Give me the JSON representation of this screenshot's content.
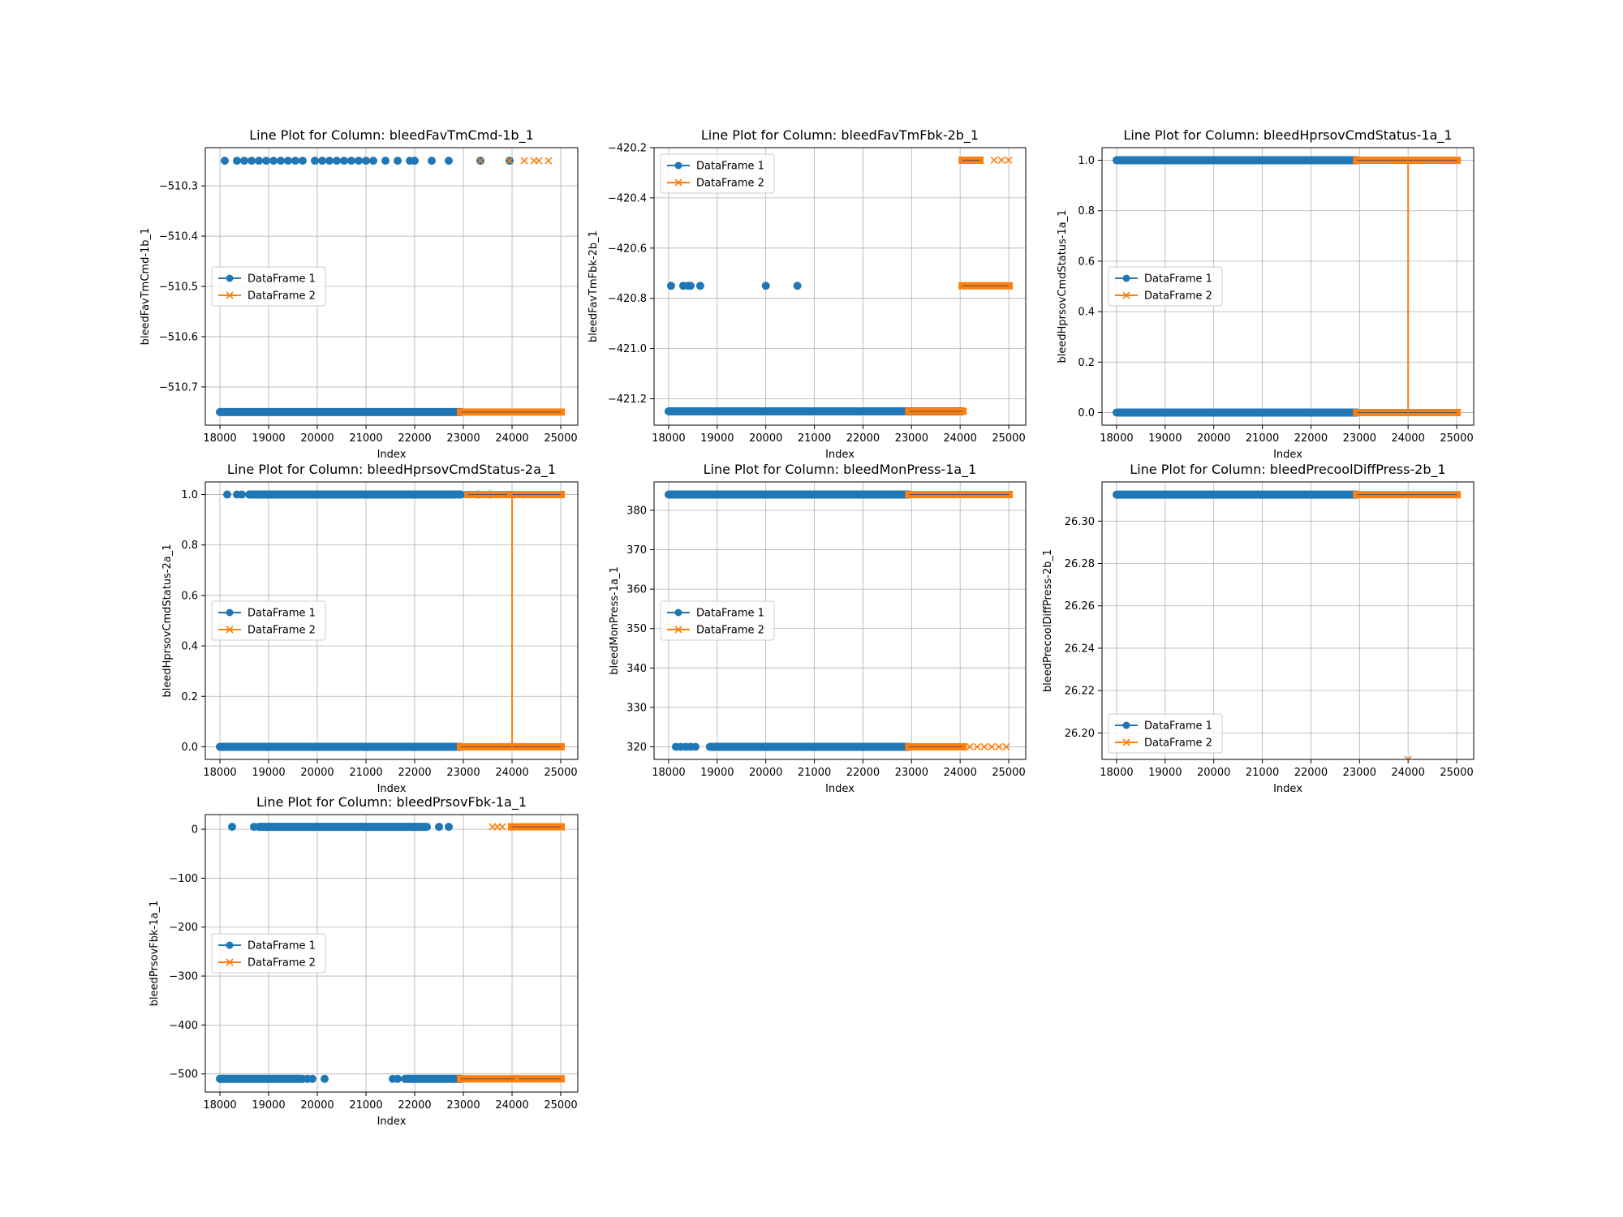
{
  "figure": {
    "colors": {
      "df1": "#1f77b4",
      "df2": "#ff7f0e",
      "grid": "#b0b0b0",
      "axes": "#000000"
    }
  },
  "chart_data": [
    {
      "type": "scatter",
      "title": "Line Plot for Column: bleedFavTmCmd-1b_1",
      "xlabel": "Index",
      "ylabel": "bleedFavTmCmd-1b_1",
      "xlim": [
        17700,
        25350
      ],
      "ylim": [
        -510.776,
        -510.224
      ],
      "xticks": [
        18000,
        19000,
        20000,
        21000,
        22000,
        23000,
        24000,
        25000
      ],
      "xtick_labels": [
        "18000",
        "19000",
        "20000",
        "21000",
        "22000",
        "23000",
        "24000",
        "25000"
      ],
      "yticks": [
        -510.3,
        -510.4,
        -510.5,
        -510.6,
        -510.7
      ],
      "ytick_labels": [
        "−510.3",
        "−510.4",
        "−510.5",
        "−510.6",
        "−510.7"
      ],
      "grid": true,
      "legend": {
        "position": "center-left",
        "entries": [
          "DataFrame 1",
          "DataFrame 2"
        ]
      },
      "series": [
        {
          "name": "DataFrame 1",
          "marker": "circle",
          "segments": [
            {
              "x": [
                18000,
                22950
              ],
              "y": -510.75
            }
          ],
          "points": [
            [
              18100,
              -510.25
            ],
            [
              18350,
              -510.25
            ],
            [
              18500,
              -510.25
            ],
            [
              18650,
              -510.25
            ],
            [
              18800,
              -510.25
            ],
            [
              18950,
              -510.25
            ],
            [
              19100,
              -510.25
            ],
            [
              19250,
              -510.25
            ],
            [
              19400,
              -510.25
            ],
            [
              19550,
              -510.25
            ],
            [
              19700,
              -510.25
            ],
            [
              19950,
              -510.25
            ],
            [
              20100,
              -510.25
            ],
            [
              20250,
              -510.25
            ],
            [
              20400,
              -510.25
            ],
            [
              20550,
              -510.25
            ],
            [
              20700,
              -510.25
            ],
            [
              20850,
              -510.25
            ],
            [
              21000,
              -510.25
            ],
            [
              21150,
              -510.25
            ],
            [
              21400,
              -510.25
            ],
            [
              21650,
              -510.25
            ],
            [
              21900,
              -510.25
            ],
            [
              22000,
              -510.25
            ],
            [
              22350,
              -510.25
            ],
            [
              22700,
              -510.25
            ],
            [
              23350,
              -510.25
            ],
            [
              23950,
              -510.25
            ]
          ]
        },
        {
          "name": "DataFrame 2",
          "marker": "x",
          "segments": [
            {
              "x": [
                22950,
                25000
              ],
              "y": -510.75
            }
          ],
          "points": [
            [
              23350,
              -510.25
            ],
            [
              23950,
              -510.25
            ],
            [
              24250,
              -510.25
            ],
            [
              24450,
              -510.25
            ],
            [
              24550,
              -510.25
            ],
            [
              24750,
              -510.25
            ]
          ]
        }
      ]
    },
    {
      "type": "scatter",
      "title": "Line Plot for Column: bleedFavTmFbk-2b_1",
      "xlabel": "Index",
      "ylabel": "bleedFavTmFbk-2b_1",
      "xlim": [
        17700,
        25350
      ],
      "ylim": [
        -421.305,
        -420.2
      ],
      "xticks": [
        18000,
        19000,
        20000,
        21000,
        22000,
        23000,
        24000,
        25000
      ],
      "xtick_labels": [
        "18000",
        "19000",
        "20000",
        "21000",
        "22000",
        "23000",
        "24000",
        "25000"
      ],
      "yticks": [
        -420.2,
        -420.4,
        -420.6,
        -420.8,
        -421.0,
        -421.2
      ],
      "ytick_labels": [
        "−420.2",
        "−420.4",
        "−420.6",
        "−420.8",
        "−421.0",
        "−421.2"
      ],
      "grid": true,
      "legend": {
        "position": "top-left",
        "entries": [
          "DataFrame 1",
          "DataFrame 2"
        ]
      },
      "series": [
        {
          "name": "DataFrame 1",
          "marker": "circle",
          "segments": [
            {
              "x": [
                18000,
                24050
              ],
              "y": -421.25
            }
          ],
          "points": [
            [
              18050,
              -420.75
            ],
            [
              18300,
              -420.75
            ],
            [
              18400,
              -420.75
            ],
            [
              18450,
              -420.75
            ],
            [
              18650,
              -420.75
            ],
            [
              20000,
              -420.75
            ],
            [
              20650,
              -420.75
            ]
          ]
        },
        {
          "name": "DataFrame 2",
          "marker": "x",
          "segments": [
            {
              "x": [
                22950,
                24050
              ],
              "y": -421.25
            },
            {
              "x": [
                24050,
                25000
              ],
              "y": -420.75
            },
            {
              "x": [
                24050,
                24400
              ],
              "y": -420.25
            }
          ],
          "points": [
            [
              24700,
              -420.25
            ],
            [
              24850,
              -420.25
            ],
            [
              25000,
              -420.25
            ]
          ]
        }
      ]
    },
    {
      "type": "line",
      "title": "Line Plot for Column: bleedHprsovCmdStatus-1a_1",
      "xlabel": "Index",
      "ylabel": "bleedHprsovCmdStatus-1a_1",
      "xlim": [
        17700,
        25350
      ],
      "ylim": [
        -0.05,
        1.05
      ],
      "xticks": [
        18000,
        19000,
        20000,
        21000,
        22000,
        23000,
        24000,
        25000
      ],
      "xtick_labels": [
        "18000",
        "19000",
        "20000",
        "21000",
        "22000",
        "23000",
        "24000",
        "25000"
      ],
      "yticks": [
        0.0,
        0.2,
        0.4,
        0.6,
        0.8,
        1.0
      ],
      "ytick_labels": [
        "0.0",
        "0.2",
        "0.4",
        "0.6",
        "0.8",
        "1.0"
      ],
      "grid": true,
      "legend": {
        "position": "center-left",
        "entries": [
          "DataFrame 1",
          "DataFrame 2"
        ]
      },
      "series": [
        {
          "name": "DataFrame 1",
          "marker": "circle",
          "segments": [
            {
              "x": [
                18000,
                22950
              ],
              "y": 1.0
            },
            {
              "x": [
                18000,
                22950
              ],
              "y": 0.0
            }
          ],
          "points": []
        },
        {
          "name": "DataFrame 2",
          "marker": "x",
          "segments": [
            {
              "x": [
                22950,
                25000
              ],
              "y": 1.0
            },
            {
              "x": [
                22950,
                25000
              ],
              "y": 0.0
            }
          ],
          "vlines": [
            {
              "x": 24000,
              "y": [
                0.0,
                1.0
              ]
            }
          ],
          "points": []
        }
      ]
    },
    {
      "type": "line",
      "title": "Line Plot for Column: bleedHprsovCmdStatus-2a_1",
      "xlabel": "Index",
      "ylabel": "bleedHprsovCmdStatus-2a_1",
      "xlim": [
        17700,
        25350
      ],
      "ylim": [
        -0.05,
        1.05
      ],
      "xticks": [
        18000,
        19000,
        20000,
        21000,
        22000,
        23000,
        24000,
        25000
      ],
      "xtick_labels": [
        "18000",
        "19000",
        "20000",
        "21000",
        "22000",
        "23000",
        "24000",
        "25000"
      ],
      "yticks": [
        0.0,
        0.2,
        0.4,
        0.6,
        0.8,
        1.0
      ],
      "ytick_labels": [
        "0.0",
        "0.2",
        "0.4",
        "0.6",
        "0.8",
        "1.0"
      ],
      "grid": true,
      "legend": {
        "position": "center-left",
        "entries": [
          "DataFrame 1",
          "DataFrame 2"
        ]
      },
      "series": [
        {
          "name": "DataFrame 1",
          "marker": "circle",
          "segments": [
            {
              "x": [
                18000,
                22950
              ],
              "y": 0.0
            },
            {
              "x": [
                18600,
                22950
              ],
              "y": 1.0
            }
          ],
          "points": [
            [
              18150,
              1.0
            ],
            [
              18350,
              1.0
            ],
            [
              18450,
              1.0
            ],
            [
              23300,
              1.0
            ],
            [
              23550,
              1.0
            ]
          ]
        },
        {
          "name": "DataFrame 2",
          "marker": "x",
          "segments": [
            {
              "x": [
                22950,
                25000
              ],
              "y": 0.0
            },
            {
              "x": [
                23100,
                23900
              ],
              "y": 1.0
            },
            {
              "x": [
                24000,
                25000
              ],
              "y": 1.0
            }
          ],
          "vlines": [
            {
              "x": 24000,
              "y": [
                0.0,
                1.0
              ]
            }
          ],
          "points": []
        }
      ]
    },
    {
      "type": "scatter",
      "title": "Line Plot for Column: bleedMonPress-1a_1",
      "xlabel": "Index",
      "ylabel": "bleedMonPress-1a_1",
      "xlim": [
        17700,
        25350
      ],
      "ylim": [
        316.8,
        387.2
      ],
      "xticks": [
        18000,
        19000,
        20000,
        21000,
        22000,
        23000,
        24000,
        25000
      ],
      "xtick_labels": [
        "18000",
        "19000",
        "20000",
        "21000",
        "22000",
        "23000",
        "24000",
        "25000"
      ],
      "yticks": [
        320,
        330,
        340,
        350,
        360,
        370,
        380
      ],
      "ytick_labels": [
        "320",
        "330",
        "340",
        "350",
        "360",
        "370",
        "380"
      ],
      "grid": true,
      "legend": {
        "position": "center-left",
        "entries": [
          "DataFrame 1",
          "DataFrame 2"
        ]
      },
      "series": [
        {
          "name": "DataFrame 1",
          "marker": "circle",
          "segments": [
            {
              "x": [
                18000,
                22950
              ],
              "y": 384
            },
            {
              "x": [
                18850,
                22950
              ],
              "y": 320
            }
          ],
          "points": [
            [
              18150,
              320
            ],
            [
              18250,
              320
            ],
            [
              18350,
              320
            ],
            [
              18450,
              320
            ],
            [
              18550,
              320
            ]
          ]
        },
        {
          "name": "DataFrame 2",
          "marker": "x",
          "segments": [
            {
              "x": [
                22950,
                25000
              ],
              "y": 384
            },
            {
              "x": [
                22950,
                24050
              ],
              "y": 320
            }
          ],
          "points": [
            [
              24200,
              320
            ],
            [
              24350,
              320
            ],
            [
              24500,
              320
            ],
            [
              24650,
              320
            ],
            [
              24800,
              320
            ],
            [
              24950,
              320
            ]
          ]
        }
      ]
    },
    {
      "type": "scatter",
      "title": "Line Plot for Column: bleedPrecoolDiffPress-2b_1",
      "xlabel": "Index",
      "ylabel": "bleedPrecoolDiffPress-2b_1",
      "xlim": [
        17700,
        25350
      ],
      "ylim": [
        26.1875,
        26.3185
      ],
      "xticks": [
        18000,
        19000,
        20000,
        21000,
        22000,
        23000,
        24000,
        25000
      ],
      "xtick_labels": [
        "18000",
        "19000",
        "20000",
        "21000",
        "22000",
        "23000",
        "24000",
        "25000"
      ],
      "yticks": [
        26.2,
        26.22,
        26.24,
        26.26,
        26.28,
        26.3
      ],
      "ytick_labels": [
        "26.20",
        "26.22",
        "26.24",
        "26.26",
        "26.28",
        "26.30"
      ],
      "grid": true,
      "legend": {
        "position": "bottom-left",
        "entries": [
          "DataFrame 1",
          "DataFrame 2"
        ]
      },
      "series": [
        {
          "name": "DataFrame 1",
          "marker": "circle",
          "segments": [
            {
              "x": [
                18000,
                22950
              ],
              "y": 26.3125
            }
          ],
          "points": []
        },
        {
          "name": "DataFrame 2",
          "marker": "x",
          "segments": [
            {
              "x": [
                22950,
                25000
              ],
              "y": 26.3125
            }
          ],
          "points": [
            [
              24000,
              26.1875
            ]
          ]
        }
      ]
    },
    {
      "type": "scatter",
      "title": "Line Plot for Column: bleedPrsovFbk-1a_1",
      "xlabel": "Index",
      "ylabel": "bleedPrsovFbk-1a_1",
      "xlim": [
        17700,
        25350
      ],
      "ylim": [
        -537,
        30
      ],
      "xticks": [
        18000,
        19000,
        20000,
        21000,
        22000,
        23000,
        24000,
        25000
      ],
      "xtick_labels": [
        "18000",
        "19000",
        "20000",
        "21000",
        "22000",
        "23000",
        "24000",
        "25000"
      ],
      "yticks": [
        0,
        -100,
        -200,
        -300,
        -400,
        -500
      ],
      "ytick_labels": [
        "0",
        "−100",
        "−200",
        "−300",
        "−400",
        "−500"
      ],
      "grid": true,
      "legend": {
        "position": "center-left",
        "entries": [
          "DataFrame 1",
          "DataFrame 2"
        ]
      },
      "series": [
        {
          "name": "DataFrame 1",
          "marker": "circle",
          "segments": [
            {
              "x": [
                18800,
                22250
              ],
              "y": 5
            },
            {
              "x": [
                18000,
                19650
              ],
              "y": -510
            },
            {
              "x": [
                21800,
                22950
              ],
              "y": -510
            }
          ],
          "points": [
            [
              18250,
              5
            ],
            [
              18700,
              5
            ],
            [
              22500,
              5
            ],
            [
              22700,
              5
            ],
            [
              19700,
              -510
            ],
            [
              19800,
              -510
            ],
            [
              19900,
              -510
            ],
            [
              20150,
              -510
            ],
            [
              21550,
              -510
            ],
            [
              21650,
              -510
            ]
          ]
        },
        {
          "name": "DataFrame 2",
          "marker": "x",
          "segments": [
            {
              "x": [
                24000,
                25000
              ],
              "y": 5
            },
            {
              "x": [
                22950,
                24050
              ],
              "y": -510
            },
            {
              "x": [
                24150,
                25000
              ],
              "y": -510
            }
          ],
          "points": [
            [
              23600,
              5
            ],
            [
              23700,
              5
            ],
            [
              23800,
              5
            ]
          ]
        }
      ]
    }
  ]
}
